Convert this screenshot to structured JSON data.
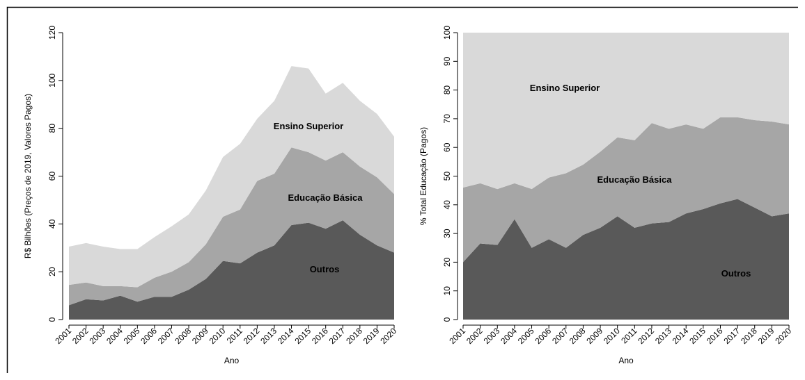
{
  "chart_data": [
    {
      "type": "area",
      "stacked": true,
      "y_label": "R$ Bilhões (Preços de 2019, Valores Pagos)",
      "x_label": "Ano",
      "categories": [
        "2001",
        "2002",
        "2003",
        "2004",
        "2005",
        "2006",
        "2007",
        "2008",
        "2009",
        "2010",
        "2011",
        "2012",
        "2013",
        "2014",
        "2015",
        "2016",
        "2017",
        "2018",
        "2019",
        "2020"
      ],
      "ylim": [
        0,
        120
      ],
      "yticks": [
        0,
        20,
        40,
        60,
        80,
        100,
        120
      ],
      "series": [
        {
          "name": "Outros",
          "color": "#595959",
          "values": [
            6,
            8.5,
            8,
            10,
            7.5,
            9.5,
            9.5,
            12.5,
            17,
            24.5,
            23.5,
            28,
            31,
            39.5,
            40.5,
            38,
            41.5,
            35.5,
            31,
            28
          ]
        },
        {
          "name": "Educação Básica",
          "color": "#a6a6a6",
          "values": [
            8.5,
            7,
            6,
            4,
            6,
            8,
            10.5,
            11.5,
            14.5,
            18.5,
            22.5,
            30,
            30,
            32.5,
            29.5,
            28.5,
            28.5,
            28.5,
            28.5,
            24.5
          ]
        },
        {
          "name": "Ensino Superior",
          "color": "#d9d9d9",
          "values": [
            16,
            16.5,
            16.5,
            15.5,
            16,
            17,
            19,
            20,
            22.5,
            25,
            27.5,
            26,
            30.5,
            34,
            35,
            28,
            29,
            27.5,
            26.5,
            24
          ]
        }
      ]
    },
    {
      "type": "area",
      "stacked": true,
      "y_label": "% Total Educação (Pagos)",
      "x_label": "Ano",
      "categories": [
        "2001",
        "2002",
        "2003",
        "2004",
        "2005",
        "2006",
        "2007",
        "2008",
        "2009",
        "2010",
        "2011",
        "2012",
        "2013",
        "2014",
        "2015",
        "2016",
        "2017",
        "2018",
        "2019",
        "2020"
      ],
      "ylim": [
        0,
        100
      ],
      "yticks": [
        0,
        10,
        20,
        30,
        40,
        50,
        60,
        70,
        80,
        90,
        100
      ],
      "series": [
        {
          "name": "Outros",
          "color": "#595959",
          "values": [
            20,
            26.5,
            26,
            35,
            25,
            28,
            25,
            29.5,
            32,
            36,
            32,
            33.5,
            34,
            37,
            38.5,
            40.5,
            42,
            39,
            36,
            37
          ]
        },
        {
          "name": "Educação Básica",
          "color": "#a6a6a6",
          "values": [
            26,
            21,
            19.5,
            12.5,
            20.5,
            21.5,
            26,
            24.5,
            26.5,
            27.5,
            30.5,
            35,
            32.5,
            31,
            28,
            30,
            28.5,
            30.5,
            33,
            31
          ]
        },
        {
          "name": "Ensino Superior",
          "color": "#d9d9d9",
          "values": [
            54,
            52.5,
            54.5,
            52.5,
            54.5,
            50.5,
            49,
            46,
            41.5,
            36.5,
            37.5,
            31.5,
            33.5,
            32,
            33.5,
            29.5,
            29.5,
            30.5,
            31,
            32
          ]
        }
      ]
    }
  ]
}
